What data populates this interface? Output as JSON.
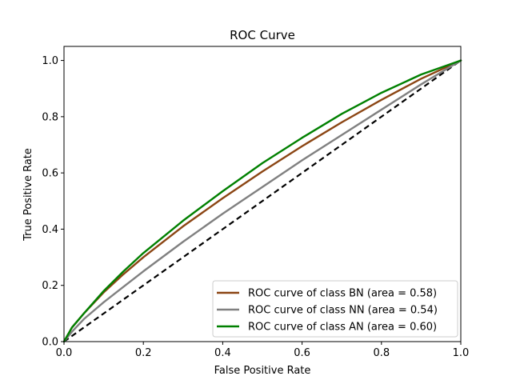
{
  "chart_data": {
    "type": "line",
    "title": "ROC Curve",
    "xlabel": "False Positive Rate",
    "ylabel": "True Positive Rate",
    "xlim": [
      0,
      1
    ],
    "ylim": [
      0,
      1.05
    ],
    "xticks": [
      0.0,
      0.2,
      0.4,
      0.6,
      0.8,
      1.0
    ],
    "yticks": [
      0.0,
      0.2,
      0.4,
      0.6,
      0.8,
      1.0
    ],
    "xtick_labels": [
      "0.0",
      "0.2",
      "0.4",
      "0.6",
      "0.8",
      "1.0"
    ],
    "ytick_labels": [
      "0.0",
      "0.2",
      "0.4",
      "0.6",
      "0.8",
      "1.0"
    ],
    "grid": false,
    "legend_position": "lower-right",
    "series": [
      {
        "name": "ROC curve of class BN (area = 0.58)",
        "color": "#8B4513",
        "x": [
          0,
          0.02,
          0.05,
          0.1,
          0.15,
          0.2,
          0.3,
          0.4,
          0.5,
          0.6,
          0.7,
          0.8,
          0.9,
          1.0
        ],
        "y": [
          0,
          0.05,
          0.1,
          0.175,
          0.24,
          0.3,
          0.41,
          0.51,
          0.605,
          0.695,
          0.78,
          0.86,
          0.935,
          1.0
        ]
      },
      {
        "name": "ROC curve of class NN (area = 0.54)",
        "color": "#808080",
        "x": [
          0,
          0.02,
          0.05,
          0.1,
          0.15,
          0.2,
          0.3,
          0.4,
          0.5,
          0.6,
          0.7,
          0.8,
          0.9,
          1.0
        ],
        "y": [
          0,
          0.035,
          0.08,
          0.14,
          0.195,
          0.25,
          0.355,
          0.455,
          0.55,
          0.645,
          0.735,
          0.825,
          0.915,
          1.0
        ]
      },
      {
        "name": "ROC curve of class AN (area = 0.60)",
        "color": "#008000",
        "x": [
          0,
          0.02,
          0.05,
          0.1,
          0.15,
          0.2,
          0.3,
          0.4,
          0.5,
          0.6,
          0.7,
          0.8,
          0.9,
          1.0
        ],
        "y": [
          0,
          0.05,
          0.1,
          0.18,
          0.25,
          0.315,
          0.43,
          0.535,
          0.635,
          0.725,
          0.81,
          0.885,
          0.95,
          1.0
        ]
      }
    ],
    "reference_line": {
      "style": "dashed",
      "color": "#000000",
      "x": [
        0,
        1
      ],
      "y": [
        0,
        1
      ]
    }
  }
}
